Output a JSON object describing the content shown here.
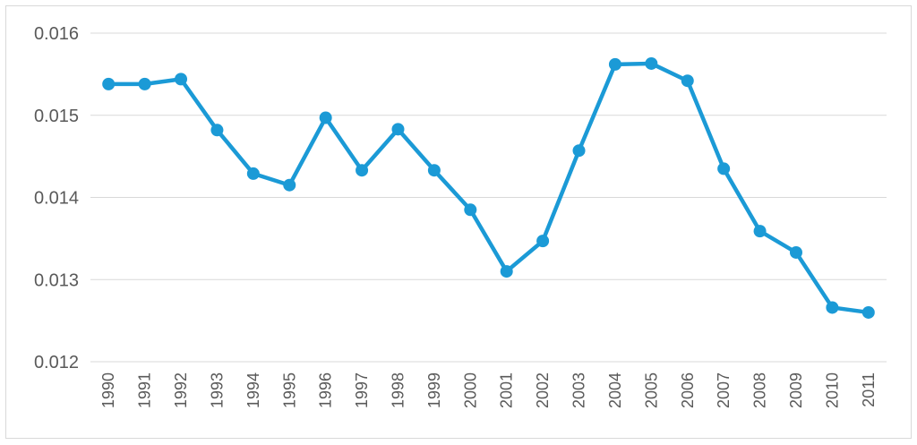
{
  "chart_data": {
    "type": "line",
    "title": "",
    "xlabel": "",
    "ylabel": "",
    "x": [
      "1990",
      "1991",
      "1992",
      "1993",
      "1994",
      "1995",
      "1996",
      "1997",
      "1998",
      "1999",
      "2000",
      "2001",
      "2002",
      "2003",
      "2004",
      "2005",
      "2006",
      "2007",
      "2008",
      "2009",
      "2010",
      "2011"
    ],
    "series": [
      {
        "values": [
          0.01538,
          0.01538,
          0.01544,
          0.01482,
          0.01429,
          0.01415,
          0.01497,
          0.01433,
          0.01483,
          0.01433,
          0.01385,
          0.0131,
          0.01347,
          0.01457,
          0.01562,
          0.01563,
          0.01542,
          0.01435,
          0.01359,
          0.01333,
          0.01266,
          0.0126
        ],
        "color": "#1b9ad6"
      }
    ],
    "ylim": [
      0.012,
      0.016
    ],
    "yticks": [
      "0.012",
      "0.013",
      "0.014",
      "0.015",
      "0.016"
    ],
    "grid": true,
    "legend": "none"
  }
}
